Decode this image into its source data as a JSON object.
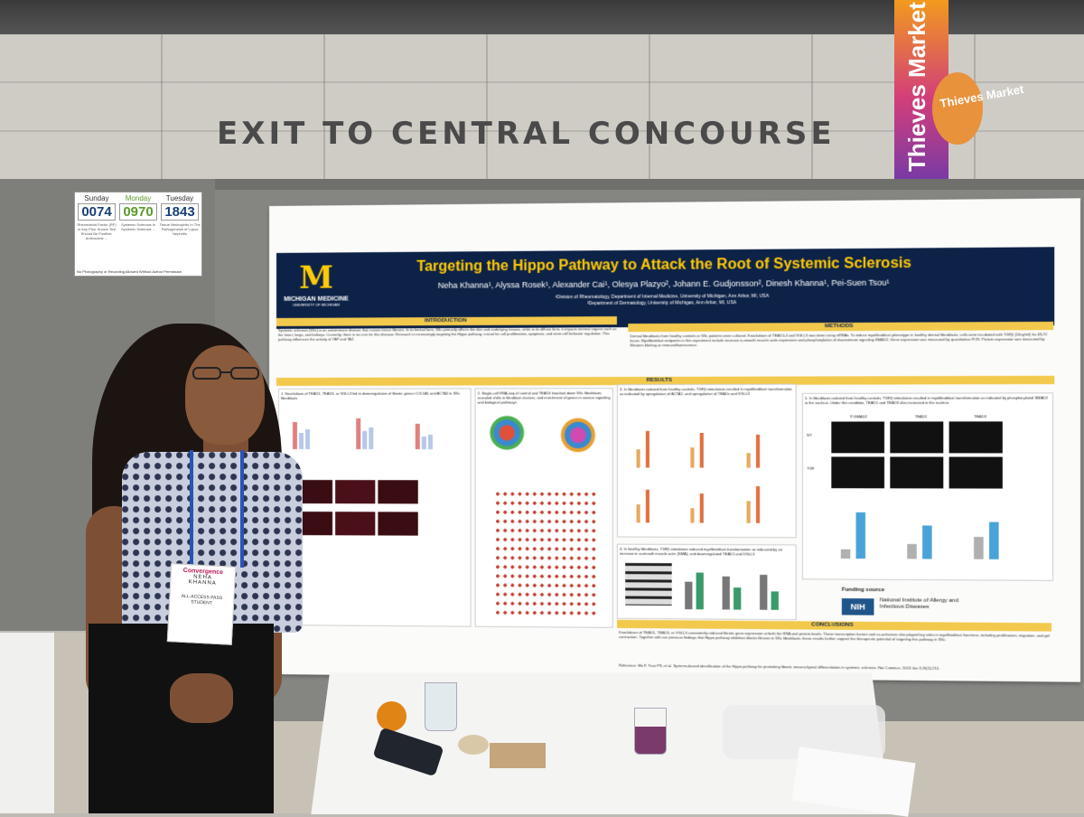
{
  "scene": {
    "exit_sign": "EXIT TO CENTRAL CONCOURSE",
    "banner": {
      "text": "Thieves Market",
      "circle_text": "Thieves Market"
    }
  },
  "schedule_sign": {
    "days": [
      {
        "name": "Sunday",
        "count": "0074",
        "topic": "Rheumatoid Factor (RF) or Any Prior Known Test Should Be Positive; Antinuclear ..."
      },
      {
        "name": "Monday",
        "count": "0970",
        "topic": "Systemic Sclerosis in Systemic Sclerosis ..."
      },
      {
        "name": "Tuesday",
        "count": "1843",
        "topic": "Tissue Neutrophils In The Pathogenesis of Lupus Nephritis"
      }
    ],
    "footer": "No Photography or Recording Allowed Without Author Permission"
  },
  "poster": {
    "logo": {
      "mark": "M",
      "line1": "MICHIGAN MEDICINE",
      "line2": "UNIVERSITY OF MICHIGAN"
    },
    "title": "Targeting the Hippo Pathway to Attack the Root of Systemic Sclerosis",
    "authors": "Neha Khanna¹, Alyssa Rosek¹, Alexander Cai¹, Olesya Plazyo², Johann E. Gudjonsson², Dinesh Khanna¹, Pei-Suen Tsou¹",
    "affiliation1": "¹Division of Rheumatology, Department of Internal Medicine, University of Michigan, Ann Arbor, MI, USA",
    "affiliation2": "²Department of Dermatology, University of Michigan, Ann Arbor, MI, USA",
    "sections": {
      "introduction": "INTRODUCTION",
      "methods": "METHODS",
      "results": "RESULTS",
      "conclusions": "CONCLUSIONS"
    },
    "intro_text": "Systemic sclerosis (SSc) is an autoimmune disease that causes tissue fibrosis. In its limited form, SSc primarily affects the skin and underlying tissues, while in its diffuse form, it impacts internal organs such as the heart, lungs, and kidneys. Currently, there is no cure for this disease. Research is increasingly targeting the Hippo pathway, crucial for cell proliferation, apoptosis, and stem cell behavior regulation. This pathway influences the activity of YAP and TAZ.",
    "methods_text": "Dermal fibroblasts from healthy controls or SSc patients were cultured. Knockdown of TEAD1-4 and VGLL3 was done using siRNAs. To induce myofibroblast phenotype in healthy dermal fibroblasts, cells were incubated with TGFβ (10ng/ml) for 48-72 hours. Myofibroblast endpoints in this experiment include increase α-smooth muscle actin expression and phosphorylation of downstream signaling SMAD2. Gene expression was measured by quantitative PCR. Protein expression was measured by Western blotting or immunofluorescence.",
    "figure_captions": {
      "fig1": "1. Knockdown of TEAD1, TEAD3, or VGLL3 led to downregulation of fibrotic genes COL1A1 and ACTA2 in SSc fibroblasts",
      "fig2": "2. Single-cell RNA-seq of control and TEAD3 knocked down SSc fibroblasts revealed shifts in fibroblast clusters, and enrichment of genes in various signaling and biological pathways",
      "fig3": "3. In fibroblasts isolated from healthy controls, TGFβ stimulation resulted in myofibroblast transformation as indicated by upregulation of ACTA2, and upregulation of TEADs and VGLL3",
      "fig4": "4. In healthy fibroblasts, TGFβ stimulation induced myofibroblast transformation as indicated by an increase in α-smooth muscle actin (SMA), and downregulated TEAD1 and VGLL3",
      "fig5": "5. In fibroblasts isolated from healthy controls, TGFβ stimulation resulted in myofibroblast transformation as indicated by phosphorylated SMAD2 in the nucleus. Under this condition, TEAD1 and TEAD3 also increased in the nucleus"
    },
    "micro_labels": {
      "col1": "P-SMAD2",
      "col2": "TEAD1",
      "col3": "TEAD3",
      "row1": "NT",
      "row2": "TGF"
    },
    "legend": {
      "nt": "NT",
      "tgf": "TGFβ"
    },
    "funding": {
      "label": "Funding source",
      "nih": "NIH",
      "institute": "National Institute of Allergy and Infectious Diseases"
    },
    "conclusions_text": "Knockdown of TEAD1, TEAD3, or VGLL3 consistently reduced fibrotic gene expression at both the RNA and protein levels. These transcription factors and co-activators also played key roles in myofibroblast functions, including proliferation, migration, and gel contraction. Together with our previous findings that Hippo pathway inhibition blocks fibrosis in SSc fibroblasts, these results further support the therapeutic potential of targeting this pathway in SSc.",
    "reference": "Reference: Ma F, Tsou PS, et al. Systems-based identification of the Hippo pathway for promoting fibrotic mesenchymal differentiation in systemic sclerosis. Nat Commun. 2024 Jan 3;15(1):210."
  },
  "badge": {
    "logo": "Convergence",
    "first_name": "NEHA",
    "last_name": "KHANNA",
    "pass": "ALL-ACCESS PASS",
    "role": "STUDENT"
  }
}
